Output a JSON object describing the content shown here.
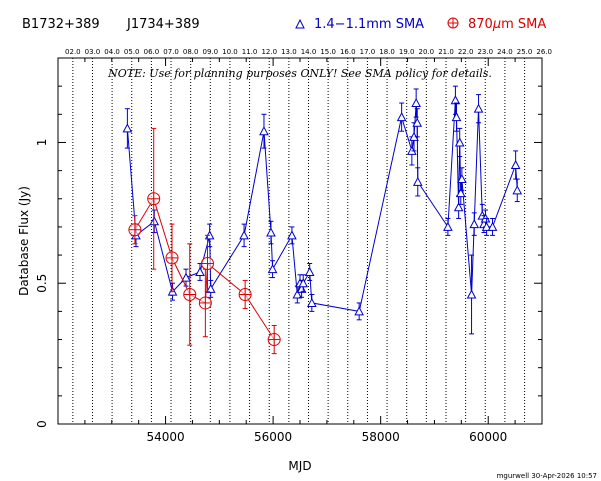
{
  "header": {
    "source_name": "B1732+389",
    "alt_name": "J1734+389",
    "legend_sma_blue": "1.4−1.1mm SMA",
    "legend_sma_red_prefix": "870",
    "legend_sma_red_mu": "μ",
    "legend_sma_red_suffix": "m SMA"
  },
  "note": "NOTE: Use for planning purposes ONLY! See SMA policy for details.",
  "footer": "mgurwell 30-Apr-2026 10:57",
  "colors": {
    "blue": "#0000cc",
    "red": "#dd0000",
    "axis": "#000000"
  },
  "chart_data": {
    "type": "scatter",
    "title": "",
    "xlabel": "MJD",
    "ylabel": "Database Flux (Jy)",
    "xlim": [
      52000,
      61000
    ],
    "ylim": [
      0,
      1.3
    ],
    "x_ticks": [
      54000,
      56000,
      58000,
      60000
    ],
    "y_ticks": [
      0,
      0.5,
      1
    ],
    "y_tick_labels": [
      "0",
      "0.5",
      "1"
    ],
    "top_axis_labels": [
      "02.0",
      "03.0",
      "04.0",
      "05.0",
      "06.0",
      "07.0",
      "08.0",
      "09.0",
      "10.0",
      "11.0",
      "12.0",
      "13.0",
      "14.0",
      "15.0",
      "16.0",
      "17.0",
      "18.0",
      "19.0",
      "20.0",
      "21.0",
      "22.0",
      "23.0",
      "24.0",
      "25.0",
      "26.0"
    ],
    "year_lines_mjd": [
      52276,
      52641,
      53006,
      53371,
      53737,
      54102,
      54467,
      54832,
      55197,
      55562,
      55928,
      56293,
      56658,
      57023,
      57388,
      57754,
      58119,
      58484,
      58849,
      59215,
      59580,
      59945,
      60310,
      60676,
      61041
    ],
    "series": [
      {
        "name": "1.4−1.1mm SMA",
        "color": "#0000cc",
        "connected": true,
        "points": [
          {
            "x": 53290,
            "y": 1.05,
            "err": 0.07
          },
          {
            "x": 53450,
            "y": 0.67,
            "err": 0.04
          },
          {
            "x": 53790,
            "y": 0.72,
            "err": 0.04
          },
          {
            "x": 54130,
            "y": 0.47,
            "err": 0.03
          },
          {
            "x": 54380,
            "y": 0.52,
            "err": 0.03
          },
          {
            "x": 54640,
            "y": 0.54,
            "err": 0.03
          },
          {
            "x": 54820,
            "y": 0.67,
            "err": 0.04
          },
          {
            "x": 54840,
            "y": 0.48,
            "err": 0.03
          },
          {
            "x": 55460,
            "y": 0.67,
            "err": 0.04
          },
          {
            "x": 55830,
            "y": 1.04,
            "err": 0.06
          },
          {
            "x": 55960,
            "y": 0.68,
            "err": 0.04
          },
          {
            "x": 55990,
            "y": 0.55,
            "err": 0.03
          },
          {
            "x": 56350,
            "y": 0.67,
            "err": 0.03
          },
          {
            "x": 56450,
            "y": 0.46,
            "err": 0.03
          },
          {
            "x": 56500,
            "y": 0.5,
            "err": 0.03
          },
          {
            "x": 56530,
            "y": 0.48,
            "err": 0.03
          },
          {
            "x": 56560,
            "y": 0.5,
            "err": 0.03
          },
          {
            "x": 56680,
            "y": 0.54,
            "err": 0.03
          },
          {
            "x": 56720,
            "y": 0.43,
            "err": 0.03
          },
          {
            "x": 57600,
            "y": 0.4,
            "err": 0.03
          },
          {
            "x": 58390,
            "y": 1.09,
            "err": 0.05
          },
          {
            "x": 58580,
            "y": 0.97,
            "err": 0.05
          },
          {
            "x": 58620,
            "y": 1.02,
            "err": 0.05
          },
          {
            "x": 58660,
            "y": 1.14,
            "err": 0.05
          },
          {
            "x": 58680,
            "y": 1.07,
            "err": 0.05
          },
          {
            "x": 58690,
            "y": 0.86,
            "err": 0.05
          },
          {
            "x": 59250,
            "y": 0.7,
            "err": 0.03
          },
          {
            "x": 59390,
            "y": 1.15,
            "err": 0.05
          },
          {
            "x": 59410,
            "y": 1.09,
            "err": 0.05
          },
          {
            "x": 59450,
            "y": 0.77,
            "err": 0.04
          },
          {
            "x": 59470,
            "y": 1.0,
            "err": 0.05
          },
          {
            "x": 59490,
            "y": 0.82,
            "err": 0.04
          },
          {
            "x": 59510,
            "y": 0.87,
            "err": 0.04
          },
          {
            "x": 59690,
            "y": 0.46,
            "err": 0.14
          },
          {
            "x": 59740,
            "y": 0.71,
            "err": 0.04
          },
          {
            "x": 59820,
            "y": 1.12,
            "err": 0.05
          },
          {
            "x": 59890,
            "y": 0.74,
            "err": 0.04
          },
          {
            "x": 59920,
            "y": 0.71,
            "err": 0.03
          },
          {
            "x": 59950,
            "y": 0.73,
            "err": 0.03
          },
          {
            "x": 59970,
            "y": 0.7,
            "err": 0.03
          },
          {
            "x": 60080,
            "y": 0.7,
            "err": 0.03
          },
          {
            "x": 60510,
            "y": 0.92,
            "err": 0.05
          },
          {
            "x": 60540,
            "y": 0.83,
            "err": 0.04
          }
        ]
      },
      {
        "name": "870μm SMA",
        "color": "#dd0000",
        "connected": true,
        "points": [
          {
            "x": 53430,
            "y": 0.69,
            "err": 0.05
          },
          {
            "x": 53780,
            "y": 0.8,
            "err": 0.25
          },
          {
            "x": 54120,
            "y": 0.59,
            "err": 0.12
          },
          {
            "x": 54450,
            "y": 0.46,
            "err": 0.18
          },
          {
            "x": 54740,
            "y": 0.43,
            "err": 0.12
          },
          {
            "x": 54780,
            "y": 0.57,
            "err": 0.1
          },
          {
            "x": 55480,
            "y": 0.46,
            "err": 0.05
          },
          {
            "x": 56020,
            "y": 0.3,
            "err": 0.05
          }
        ]
      }
    ]
  }
}
